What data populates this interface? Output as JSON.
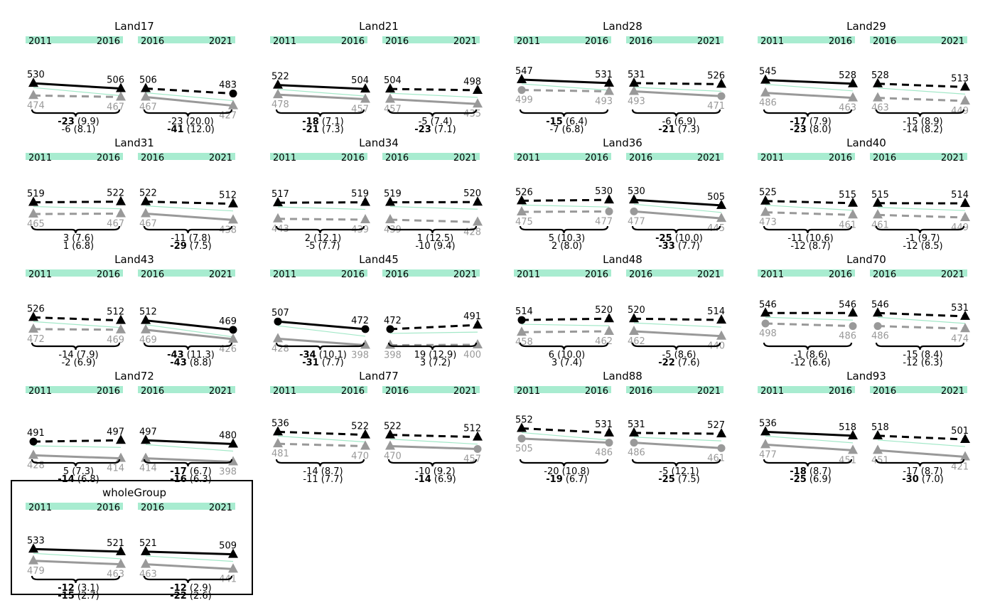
{
  "chart_data": {
    "type": "line",
    "subtitle": "",
    "group_colors": {
      "upper": "#000000",
      "lower": "#999999",
      "trend": "#a3e8c8",
      "band": "#a8ecd0"
    },
    "y_domain": [
      390,
      560
    ],
    "panels": [
      {
        "name": "Land17",
        "years": [
          "2011",
          "2016",
          "2021"
        ],
        "upper": [
          530,
          506,
          483
        ],
        "lower": [
          474,
          467,
          427
        ],
        "upper_markers": [
          "triangle",
          "triangle",
          "circle"
        ],
        "lower_markers": [
          "triangle",
          "triangle",
          "triangle"
        ],
        "dashed": {
          "upper": [
            false,
            true
          ],
          "lower": [
            true,
            false
          ]
        },
        "diffs": [
          {
            "top": "-23",
            "top_se": "(9.9)",
            "top_bold": true,
            "bottom": "-6",
            "bottom_se": "(8.1)",
            "bottom_bold": false
          },
          {
            "top": "-23",
            "top_se": "(20.0)",
            "top_bold": false,
            "bottom": "-41",
            "bottom_se": "(12.0)",
            "bottom_bold": true
          }
        ]
      },
      {
        "name": "Land21",
        "years": [
          "2011",
          "2016",
          "2021"
        ],
        "upper": [
          522,
          504,
          498
        ],
        "lower": [
          478,
          457,
          435
        ],
        "upper_markers": [
          "triangle",
          "triangle",
          "triangle"
        ],
        "lower_markers": [
          "triangle",
          "triangle",
          "triangle"
        ],
        "dashed": {
          "upper": [
            false,
            true
          ],
          "lower": [
            false,
            false
          ]
        },
        "diffs": [
          {
            "top": "-18",
            "top_se": "(7.1)",
            "top_bold": true,
            "bottom": "-21",
            "bottom_se": "(7.3)",
            "bottom_bold": true
          },
          {
            "top": "-5",
            "top_se": "(7.4)",
            "top_bold": false,
            "bottom": "-23",
            "bottom_se": "(7.1)",
            "bottom_bold": true
          }
        ]
      },
      {
        "name": "Land28",
        "years": [
          "2011",
          "2016",
          "2021"
        ],
        "upper": [
          547,
          531,
          526
        ],
        "lower": [
          499,
          493,
          471
        ],
        "upper_markers": [
          "triangle",
          "triangle",
          "triangle"
        ],
        "lower_markers": [
          "circle",
          "triangle",
          "circle"
        ],
        "dashed": {
          "upper": [
            false,
            true
          ],
          "lower": [
            true,
            false
          ]
        },
        "diffs": [
          {
            "top": "-15",
            "top_se": "(6.4)",
            "top_bold": true,
            "bottom": "-7",
            "bottom_se": "(6.8)",
            "bottom_bold": false
          },
          {
            "top": "-6",
            "top_se": "(6.9)",
            "top_bold": false,
            "bottom": "-21",
            "bottom_se": "(7.3)",
            "bottom_bold": true
          }
        ]
      },
      {
        "name": "Land29",
        "years": [
          "2011",
          "2016",
          "2021"
        ],
        "upper": [
          545,
          528,
          513
        ],
        "lower": [
          486,
          463,
          449
        ],
        "upper_markers": [
          "triangle",
          "triangle",
          "triangle"
        ],
        "lower_markers": [
          "triangle",
          "triangle",
          "triangle"
        ],
        "dashed": {
          "upper": [
            false,
            true
          ],
          "lower": [
            false,
            true
          ]
        },
        "diffs": [
          {
            "top": "-17",
            "top_se": "(7.9)",
            "top_bold": true,
            "bottom": "-23",
            "bottom_se": "(8.0)",
            "bottom_bold": true
          },
          {
            "top": "-15",
            "top_se": "(8.9)",
            "top_bold": false,
            "bottom": "-14",
            "bottom_se": "(8.2)",
            "bottom_bold": false
          }
        ]
      },
      {
        "name": "Land31",
        "years": [
          "2011",
          "2016",
          "2021"
        ],
        "upper": [
          519,
          522,
          512
        ],
        "lower": [
          465,
          467,
          438
        ],
        "upper_markers": [
          "triangle",
          "triangle",
          "triangle"
        ],
        "lower_markers": [
          "triangle",
          "triangle",
          "triangle"
        ],
        "dashed": {
          "upper": [
            true,
            true
          ],
          "lower": [
            true,
            false
          ]
        },
        "diffs": [
          {
            "top": "3",
            "top_se": "(7.6)",
            "top_bold": false,
            "bottom": "1",
            "bottom_se": "(6.8)",
            "bottom_bold": false
          },
          {
            "top": "-11",
            "top_se": "(7.8)",
            "top_bold": false,
            "bottom": "-29",
            "bottom_se": "(7.5)",
            "bottom_bold": true
          }
        ]
      },
      {
        "name": "Land34",
        "years": [
          "2011",
          "2016",
          "2021"
        ],
        "upper": [
          517,
          519,
          520
        ],
        "lower": [
          443,
          439,
          428
        ],
        "upper_markers": [
          "triangle",
          "triangle",
          "triangle"
        ],
        "lower_markers": [
          "triangle",
          "triangle",
          "triangle"
        ],
        "dashed": {
          "upper": [
            true,
            true
          ],
          "lower": [
            true,
            true
          ]
        },
        "diffs": [
          {
            "top": "2",
            "top_se": "(12.1)",
            "top_bold": false,
            "bottom": "-5",
            "bottom_se": "(7.7)",
            "bottom_bold": false
          },
          {
            "top": "1",
            "top_se": "(12.5)",
            "top_bold": false,
            "bottom": "-10",
            "bottom_se": "(9.4)",
            "bottom_bold": false
          }
        ]
      },
      {
        "name": "Land36",
        "years": [
          "2011",
          "2016",
          "2021"
        ],
        "upper": [
          526,
          530,
          505
        ],
        "lower": [
          475,
          477,
          445
        ],
        "upper_markers": [
          "triangle",
          "triangle",
          "triangle"
        ],
        "lower_markers": [
          "triangle",
          "circle",
          "triangle"
        ],
        "dashed": {
          "upper": [
            true,
            false
          ],
          "lower": [
            true,
            false
          ]
        },
        "diffs": [
          {
            "top": "5",
            "top_se": "(10.3)",
            "top_bold": false,
            "bottom": "2",
            "bottom_se": "(8.0)",
            "bottom_bold": false
          },
          {
            "top": "-25",
            "top_se": "(10.0)",
            "top_bold": true,
            "bottom": "-33",
            "bottom_se": "(7.7)",
            "bottom_bold": true
          }
        ]
      },
      {
        "name": "Land40",
        "years": [
          "2011",
          "2016",
          "2021"
        ],
        "upper": [
          525,
          515,
          514
        ],
        "lower": [
          473,
          461,
          449
        ],
        "upper_markers": [
          "triangle",
          "triangle",
          "triangle"
        ],
        "lower_markers": [
          "triangle",
          "triangle",
          "triangle"
        ],
        "dashed": {
          "upper": [
            true,
            true
          ],
          "lower": [
            true,
            true
          ]
        },
        "diffs": [
          {
            "top": "-11",
            "top_se": "(10.6)",
            "top_bold": false,
            "bottom": "-12",
            "bottom_se": "(8.7)",
            "bottom_bold": false
          },
          {
            "top": "-1",
            "top_se": "(9.7)",
            "top_bold": false,
            "bottom": "-12",
            "bottom_se": "(8.5)",
            "bottom_bold": false
          }
        ]
      },
      {
        "name": "Land43",
        "years": [
          "2011",
          "2016",
          "2021"
        ],
        "upper": [
          526,
          512,
          469
        ],
        "lower": [
          472,
          469,
          426
        ],
        "upper_markers": [
          "triangle",
          "triangle",
          "circle"
        ],
        "lower_markers": [
          "triangle",
          "triangle",
          "triangle"
        ],
        "dashed": {
          "upper": [
            true,
            false
          ],
          "lower": [
            true,
            false
          ]
        },
        "diffs": [
          {
            "top": "-14",
            "top_se": "(7.9)",
            "top_bold": false,
            "bottom": "-2",
            "bottom_se": "(6.9)",
            "bottom_bold": false
          },
          {
            "top": "-43",
            "top_se": "(11.3)",
            "top_bold": true,
            "bottom": "-43",
            "bottom_se": "(8.8)",
            "bottom_bold": true
          }
        ]
      },
      {
        "name": "Land45",
        "years": [
          "2011",
          "2016",
          "2021"
        ],
        "upper": [
          507,
          472,
          491
        ],
        "lower": [
          428,
          398,
          400
        ],
        "upper_markers": [
          "circle",
          "circle",
          "triangle"
        ],
        "lower_markers": [
          "triangle",
          "triangle",
          "triangle"
        ],
        "dashed": {
          "upper": [
            false,
            true
          ],
          "lower": [
            false,
            true
          ]
        },
        "diffs": [
          {
            "top": "-34",
            "top_se": "(10.1)",
            "top_bold": true,
            "bottom": "-31",
            "bottom_se": "(7.7)",
            "bottom_bold": true
          },
          {
            "top": "19",
            "top_se": "(12.9)",
            "top_bold": false,
            "bottom": "3",
            "bottom_se": "(7.2)",
            "bottom_bold": false
          }
        ]
      },
      {
        "name": "Land48",
        "years": [
          "2011",
          "2016",
          "2021"
        ],
        "upper": [
          514,
          520,
          514
        ],
        "lower": [
          458,
          462,
          440
        ],
        "upper_markers": [
          "circle",
          "triangle",
          "triangle"
        ],
        "lower_markers": [
          "triangle",
          "triangle",
          "triangle"
        ],
        "dashed": {
          "upper": [
            true,
            true
          ],
          "lower": [
            true,
            false
          ]
        },
        "diffs": [
          {
            "top": "6",
            "top_se": "(10.0)",
            "top_bold": false,
            "bottom": "3",
            "bottom_se": "(7.4)",
            "bottom_bold": false
          },
          {
            "top": "-5",
            "top_se": "(8.6)",
            "top_bold": false,
            "bottom": "-22",
            "bottom_se": "(7.6)",
            "bottom_bold": true
          }
        ]
      },
      {
        "name": "Land70",
        "years": [
          "2011",
          "2016",
          "2021"
        ],
        "upper": [
          546,
          546,
          531
        ],
        "lower": [
          498,
          486,
          474
        ],
        "upper_markers": [
          "triangle",
          "triangle",
          "triangle"
        ],
        "lower_markers": [
          "circle",
          "circle",
          "triangle"
        ],
        "dashed": {
          "upper": [
            true,
            true
          ],
          "lower": [
            true,
            true
          ]
        },
        "diffs": [
          {
            "top": "-1",
            "top_se": "(8.6)",
            "top_bold": false,
            "bottom": "-12",
            "bottom_se": "(6.6)",
            "bottom_bold": false
          },
          {
            "top": "-15",
            "top_se": "(8.4)",
            "top_bold": false,
            "bottom": "-12",
            "bottom_se": "(6.3)",
            "bottom_bold": false
          }
        ]
      },
      {
        "name": "Land72",
        "years": [
          "2011",
          "2016",
          "2021"
        ],
        "upper": [
          491,
          497,
          480
        ],
        "lower": [
          428,
          414,
          398
        ],
        "upper_markers": [
          "circle",
          "triangle",
          "triangle"
        ],
        "lower_markers": [
          "triangle",
          "triangle",
          "triangle"
        ],
        "dashed": {
          "upper": [
            true,
            false
          ],
          "lower": [
            false,
            false
          ]
        },
        "diffs": [
          {
            "top": "5",
            "top_se": "(7.3)",
            "top_bold": false,
            "bottom": "-14",
            "bottom_se": "(6.8)",
            "bottom_bold": true
          },
          {
            "top": "-17",
            "top_se": "(6.7)",
            "top_bold": true,
            "bottom": "-16",
            "bottom_se": "(6.3)",
            "bottom_bold": true
          }
        ]
      },
      {
        "name": "Land77",
        "years": [
          "2011",
          "2016",
          "2021"
        ],
        "upper": [
          536,
          522,
          512
        ],
        "lower": [
          481,
          470,
          457
        ],
        "upper_markers": [
          "triangle",
          "triangle",
          "triangle"
        ],
        "lower_markers": [
          "triangle",
          "triangle",
          "circle"
        ],
        "dashed": {
          "upper": [
            true,
            true
          ],
          "lower": [
            true,
            false
          ]
        },
        "diffs": [
          {
            "top": "-14",
            "top_se": "(8.7)",
            "top_bold": false,
            "bottom": "-11",
            "bottom_se": "(7.7)",
            "bottom_bold": false
          },
          {
            "top": "-10",
            "top_se": "(9.2)",
            "top_bold": false,
            "bottom": "-14",
            "bottom_se": "(6.9)",
            "bottom_bold": true
          }
        ]
      },
      {
        "name": "Land88",
        "years": [
          "2011",
          "2016",
          "2021"
        ],
        "upper": [
          552,
          531,
          527
        ],
        "lower": [
          505,
          486,
          461
        ],
        "upper_markers": [
          "triangle",
          "triangle",
          "triangle"
        ],
        "lower_markers": [
          "circle",
          "circle",
          "circle"
        ],
        "dashed": {
          "upper": [
            true,
            true
          ],
          "lower": [
            false,
            false
          ]
        },
        "diffs": [
          {
            "top": "-20",
            "top_se": "(10.8)",
            "top_bold": false,
            "bottom": "-19",
            "bottom_se": "(6.7)",
            "bottom_bold": true
          },
          {
            "top": "-5",
            "top_se": "(12.1)",
            "top_bold": false,
            "bottom": "-25",
            "bottom_se": "(7.5)",
            "bottom_bold": true
          }
        ]
      },
      {
        "name": "Land93",
        "years": [
          "2011",
          "2016",
          "2021"
        ],
        "upper": [
          536,
          518,
          501
        ],
        "lower": [
          477,
          451,
          421
        ],
        "upper_markers": [
          "triangle",
          "triangle",
          "triangle"
        ],
        "lower_markers": [
          "triangle",
          "triangle",
          "triangle"
        ],
        "dashed": {
          "upper": [
            false,
            true
          ],
          "lower": [
            false,
            false
          ]
        },
        "diffs": [
          {
            "top": "-18",
            "top_se": "(8.7)",
            "top_bold": true,
            "bottom": "-25",
            "bottom_se": "(6.9)",
            "bottom_bold": true
          },
          {
            "top": "-17",
            "top_se": "(8.7)",
            "top_bold": false,
            "bottom": "-30",
            "bottom_se": "(7.0)",
            "bottom_bold": true
          }
        ]
      },
      {
        "name": "wholeGroup",
        "years": [
          "2011",
          "2016",
          "2021"
        ],
        "boxed": true,
        "upper": [
          533,
          521,
          509
        ],
        "lower": [
          479,
          463,
          441
        ],
        "upper_markers": [
          "triangle",
          "triangle",
          "triangle"
        ],
        "lower_markers": [
          "triangle",
          "triangle",
          "triangle"
        ],
        "dashed": {
          "upper": [
            false,
            false
          ],
          "lower": [
            false,
            false
          ]
        },
        "diffs": [
          {
            "top": "-12",
            "top_se": "(3.1)",
            "top_bold": true,
            "bottom": "-15",
            "bottom_se": "(2.7)",
            "bottom_bold": true
          },
          {
            "top": "-12",
            "top_se": "(2.9)",
            "top_bold": true,
            "bottom": "-22",
            "bottom_se": "(2.6)",
            "bottom_bold": true
          }
        ]
      }
    ]
  }
}
